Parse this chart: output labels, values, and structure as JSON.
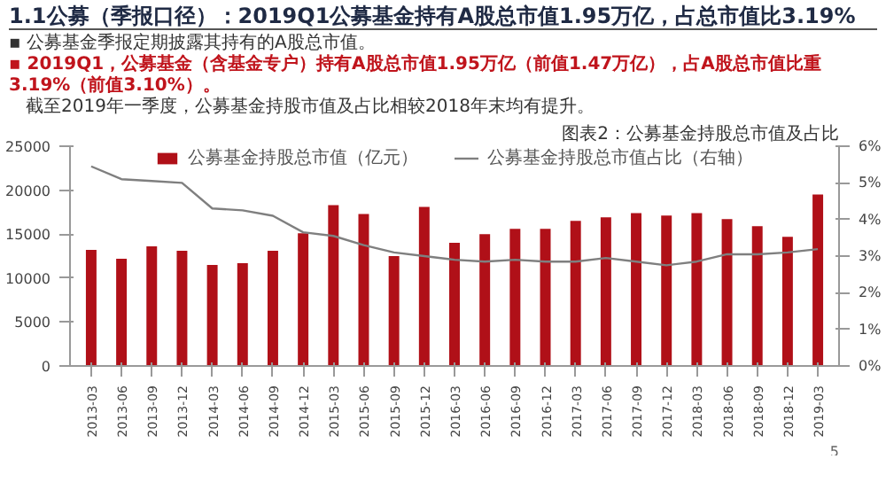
{
  "chart_data": {
    "type": "bar",
    "title": "1.1公募（季报口径）：2019Q1公募基金持有A股总市值1.95万亿，占总市值比3.19%",
    "subtitle": "图表2：公募基金持股总市值及占比",
    "annotations": [
      "▪ 公募基金季报定期披露其持有的A股总市值。",
      "▪ 2019Q1，公募基金（含基金专户）持有A股总市值1.95万亿（前值1.47万亿），占A股总市值比重3.19%（前值3.10%）。",
      "   截至2019年一季度，公募基金持股市值及占比相较2018年末均有提升。",
      "5"
    ],
    "categories": [
      "2013-03",
      "2013-06",
      "2013-09",
      "2013-12",
      "2014-03",
      "2014-06",
      "2014-09",
      "2014-12",
      "2015-03",
      "2015-06",
      "2015-09",
      "2015-12",
      "2016-03",
      "2016-06",
      "2016-09",
      "2016-12",
      "2017-03",
      "2017-06",
      "2017-09",
      "2017-12",
      "2018-03",
      "2018-06",
      "2018-09",
      "2018-12",
      "2019-03"
    ],
    "series": [
      {
        "name": "公募基金持股总市值（亿元）",
        "color": "#b01018",
        "values": [
          13200,
          12200,
          13600,
          13100,
          11500,
          11700,
          13100,
          15100,
          18300,
          17300,
          12500,
          18100,
          14000,
          15000,
          15600,
          15600,
          16500,
          16900,
          17400,
          17100,
          17400,
          16700,
          15900,
          14700,
          19500
        ]
      },
      {
        "name": "公募基金持股总市值占比（右轴）",
        "type": "line",
        "axis": "y2",
        "color": "#7f7f7f",
        "values": [
          5.45,
          5.1,
          5.05,
          5.0,
          4.3,
          4.25,
          4.1,
          3.65,
          3.55,
          3.3,
          3.1,
          3.0,
          2.9,
          2.85,
          2.9,
          2.85,
          2.85,
          2.95,
          2.85,
          2.75,
          2.85,
          3.05,
          3.05,
          3.1,
          3.19
        ]
      }
    ],
    "ylim": [
      0,
      25000
    ],
    "yticks": [
      0,
      5000,
      10000,
      15000,
      20000,
      25000
    ],
    "y2lim": [
      0,
      6
    ],
    "y2ticks": [
      {
        "value": 0,
        "label": "0%"
      },
      {
        "value": 1,
        "label": "1%"
      },
      {
        "value": 2,
        "label": "2%"
      },
      {
        "value": 3,
        "label": "3%"
      },
      {
        "value": 4,
        "label": "4%"
      },
      {
        "value": 5,
        "label": "5%"
      },
      {
        "value": 6,
        "label": "6%"
      }
    ],
    "grid": false,
    "legend": "top",
    "marker": "none",
    "line_style": "solid"
  }
}
